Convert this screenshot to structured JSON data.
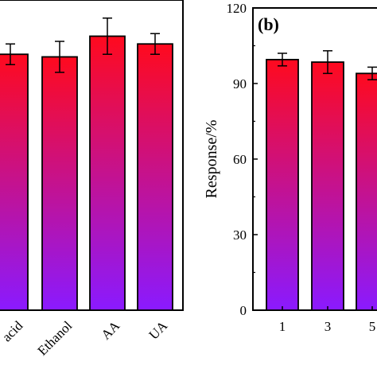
{
  "chart_data": [
    {
      "type": "bar",
      "panel": "a",
      "categories": [
        "acid",
        "Ethanol",
        "AA",
        "UA"
      ],
      "values": [
        99,
        98,
        106,
        103
      ],
      "errors": [
        4,
        6,
        7,
        4
      ],
      "ylim": [
        0,
        120
      ],
      "xlabel": "",
      "ylabel": "",
      "bar_gradient": {
        "top": "#ff0a1e",
        "bottom": "#8a1aff"
      }
    },
    {
      "type": "bar",
      "panel_label": "(b)",
      "categories": [
        "1",
        "3",
        "5"
      ],
      "values": [
        99.5,
        98.5,
        94
      ],
      "errors": [
        2.5,
        4.5,
        2.5
      ],
      "ylim": [
        0,
        120
      ],
      "yticks": [
        "0",
        "30",
        "60",
        "90",
        "120"
      ],
      "ylabel": "Response/%",
      "xlabel": "",
      "bar_gradient": {
        "top": "#ff0a1e",
        "bottom": "#8a1aff"
      }
    }
  ]
}
